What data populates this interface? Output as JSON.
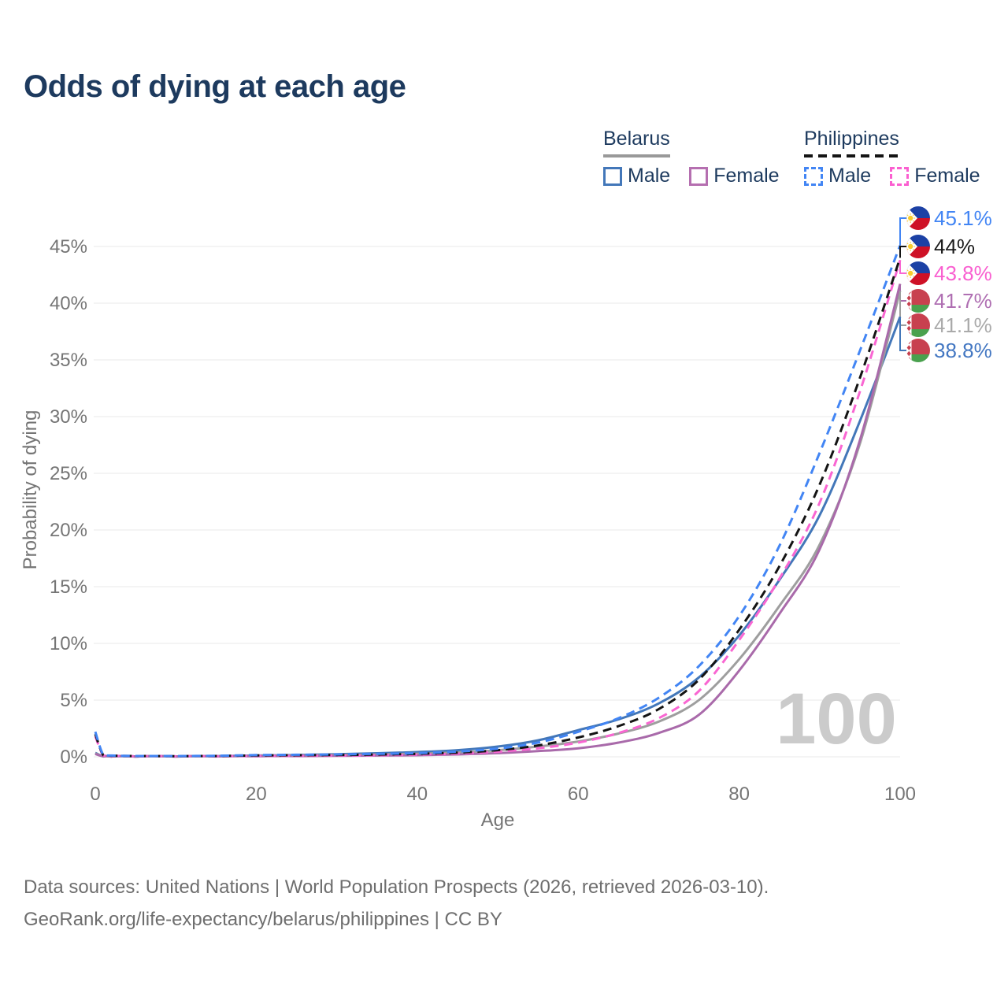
{
  "title": "Odds of dying at each age",
  "legend": {
    "groups": [
      {
        "name": "Belarus",
        "line_style": "solid",
        "underline_color": "#999999",
        "items": [
          {
            "label": "Male",
            "color": "#4377b9",
            "dash": false
          },
          {
            "label": "Female",
            "color": "#b56fb0",
            "dash": false
          }
        ]
      },
      {
        "name": "Philippines",
        "line_style": "dashed",
        "underline_color": "#141414",
        "items": [
          {
            "label": "Male",
            "color": "#4285f4",
            "dash": true
          },
          {
            "label": "Female",
            "color": "#fb5fd0",
            "dash": true
          }
        ]
      }
    ]
  },
  "chart_data": {
    "type": "line",
    "title": "Odds of dying at each age",
    "xlabel": "Age",
    "ylabel": "Probability of dying",
    "x_ticks": [
      0,
      20,
      40,
      60,
      80,
      100
    ],
    "y_ticks_percent": [
      0,
      5,
      10,
      15,
      20,
      25,
      30,
      35,
      40,
      45
    ],
    "xlim": [
      0,
      100
    ],
    "ylim_percent": [
      0,
      47
    ],
    "grid": "horizontal",
    "watermark": "100",
    "axis_color": "#757575",
    "grid_color": "#eaeaea",
    "watermark_color": "#cbcbcb",
    "series": [
      {
        "id": "philippines-male",
        "name": "Philippines Male",
        "country": "Philippines",
        "flag": "ph",
        "color": "#4285f4",
        "label_color": "#4285f4",
        "dash": true,
        "end_label": "45.1%",
        "end_value_percent": 45.1,
        "points": [
          [
            0,
            2.2
          ],
          [
            1,
            0.16
          ],
          [
            2,
            0.11
          ],
          [
            5,
            0.07
          ],
          [
            10,
            0.06
          ],
          [
            15,
            0.09
          ],
          [
            20,
            0.15
          ],
          [
            25,
            0.18
          ],
          [
            30,
            0.21
          ],
          [
            35,
            0.26
          ],
          [
            40,
            0.32
          ],
          [
            45,
            0.46
          ],
          [
            50,
            0.72
          ],
          [
            55,
            1.25
          ],
          [
            60,
            2.2
          ],
          [
            65,
            3.4
          ],
          [
            70,
            5.2
          ],
          [
            75,
            8.0
          ],
          [
            80,
            12.4
          ],
          [
            85,
            18.6
          ],
          [
            90,
            26.8
          ],
          [
            95,
            35.8
          ],
          [
            100,
            45.1
          ]
        ]
      },
      {
        "id": "philippines",
        "name": "Philippines (both sexes)",
        "country": "Philippines",
        "flag": "ph",
        "color": "#141414",
        "label_color": "#1a1a1a",
        "dash": true,
        "end_label": "44%",
        "end_value_percent": 44,
        "points": [
          [
            0,
            2.0
          ],
          [
            1,
            0.14
          ],
          [
            2,
            0.1
          ],
          [
            5,
            0.06
          ],
          [
            10,
            0.05
          ],
          [
            15,
            0.07
          ],
          [
            20,
            0.12
          ],
          [
            25,
            0.14
          ],
          [
            30,
            0.16
          ],
          [
            35,
            0.2
          ],
          [
            40,
            0.26
          ],
          [
            45,
            0.37
          ],
          [
            50,
            0.58
          ],
          [
            55,
            1.0
          ],
          [
            60,
            1.7
          ],
          [
            65,
            2.7
          ],
          [
            70,
            4.2
          ],
          [
            75,
            6.8
          ],
          [
            80,
            11.2
          ],
          [
            85,
            16.8
          ],
          [
            90,
            24.0
          ],
          [
            95,
            33.4
          ],
          [
            100,
            44.0
          ]
        ]
      },
      {
        "id": "philippines-female",
        "name": "Philippines Female",
        "country": "Philippines",
        "flag": "ph",
        "color": "#f966d2",
        "label_color": "#f95fd0",
        "dash": true,
        "end_label": "43.8%",
        "end_value_percent": 43.8,
        "points": [
          [
            0,
            1.8
          ],
          [
            1,
            0.12
          ],
          [
            2,
            0.09
          ],
          [
            5,
            0.05
          ],
          [
            10,
            0.04
          ],
          [
            15,
            0.05
          ],
          [
            20,
            0.08
          ],
          [
            25,
            0.09
          ],
          [
            30,
            0.11
          ],
          [
            35,
            0.14
          ],
          [
            40,
            0.19
          ],
          [
            45,
            0.28
          ],
          [
            50,
            0.45
          ],
          [
            55,
            0.75
          ],
          [
            60,
            1.25
          ],
          [
            65,
            2.1
          ],
          [
            70,
            3.4
          ],
          [
            75,
            5.8
          ],
          [
            80,
            10.3
          ],
          [
            85,
            15.7
          ],
          [
            90,
            22.4
          ],
          [
            95,
            32.2
          ],
          [
            100,
            43.8
          ]
        ]
      },
      {
        "id": "belarus-female",
        "name": "Belarus Female",
        "country": "Belarus",
        "flag": "by",
        "color": "#a96aaa",
        "label_color": "#af6fb2",
        "dash": false,
        "end_label": "41.7%",
        "end_value_percent": 41.7,
        "points": [
          [
            0,
            0.25
          ],
          [
            1,
            0.03
          ],
          [
            2,
            0.02
          ],
          [
            5,
            0.015
          ],
          [
            10,
            0.02
          ],
          [
            15,
            0.03
          ],
          [
            20,
            0.045
          ],
          [
            25,
            0.06
          ],
          [
            30,
            0.08
          ],
          [
            35,
            0.11
          ],
          [
            40,
            0.14
          ],
          [
            45,
            0.21
          ],
          [
            50,
            0.32
          ],
          [
            55,
            0.5
          ],
          [
            60,
            0.75
          ],
          [
            65,
            1.25
          ],
          [
            70,
            2.1
          ],
          [
            75,
            3.7
          ],
          [
            80,
            7.6
          ],
          [
            85,
            12.6
          ],
          [
            90,
            18.3
          ],
          [
            95,
            27.9
          ],
          [
            100,
            41.7
          ]
        ]
      },
      {
        "id": "belarus",
        "name": "Belarus (both sexes)",
        "country": "Belarus",
        "flag": "by",
        "color": "#9e9e9e",
        "label_color": "#aaaaaa",
        "dash": false,
        "end_label": "41.1%",
        "end_value_percent": 41.1,
        "points": [
          [
            0,
            0.3
          ],
          [
            1,
            0.035
          ],
          [
            2,
            0.025
          ],
          [
            5,
            0.02
          ],
          [
            10,
            0.025
          ],
          [
            15,
            0.04
          ],
          [
            20,
            0.08
          ],
          [
            25,
            0.11
          ],
          [
            30,
            0.15
          ],
          [
            35,
            0.2
          ],
          [
            40,
            0.27
          ],
          [
            45,
            0.38
          ],
          [
            50,
            0.58
          ],
          [
            55,
            0.9
          ],
          [
            60,
            1.35
          ],
          [
            65,
            2.05
          ],
          [
            70,
            3.1
          ],
          [
            75,
            5.0
          ],
          [
            80,
            8.6
          ],
          [
            85,
            13.3
          ],
          [
            90,
            18.7
          ],
          [
            95,
            27.6
          ],
          [
            100,
            41.1
          ]
        ]
      },
      {
        "id": "belarus-male",
        "name": "Belarus Male",
        "country": "Belarus",
        "flag": "by",
        "color": "#4377b9",
        "label_color": "#4377c2",
        "dash": false,
        "end_label": "38.8%",
        "end_value_percent": 38.8,
        "points": [
          [
            0,
            0.35
          ],
          [
            1,
            0.04
          ],
          [
            2,
            0.03
          ],
          [
            5,
            0.025
          ],
          [
            10,
            0.03
          ],
          [
            15,
            0.06
          ],
          [
            20,
            0.11
          ],
          [
            25,
            0.16
          ],
          [
            30,
            0.23
          ],
          [
            35,
            0.31
          ],
          [
            40,
            0.42
          ],
          [
            45,
            0.58
          ],
          [
            50,
            0.9
          ],
          [
            55,
            1.45
          ],
          [
            60,
            2.35
          ],
          [
            65,
            3.3
          ],
          [
            70,
            4.7
          ],
          [
            75,
            7.0
          ],
          [
            80,
            10.7
          ],
          [
            85,
            15.6
          ],
          [
            90,
            21.3
          ],
          [
            95,
            29.6
          ],
          [
            100,
            38.8
          ]
        ]
      }
    ]
  },
  "footer": {
    "line1": "Data sources: United Nations | World Population Prospects (2026, retrieved 2026-03-10).",
    "line2": "GeoRank.org/life-expectancy/belarus/philippines | CC BY"
  }
}
